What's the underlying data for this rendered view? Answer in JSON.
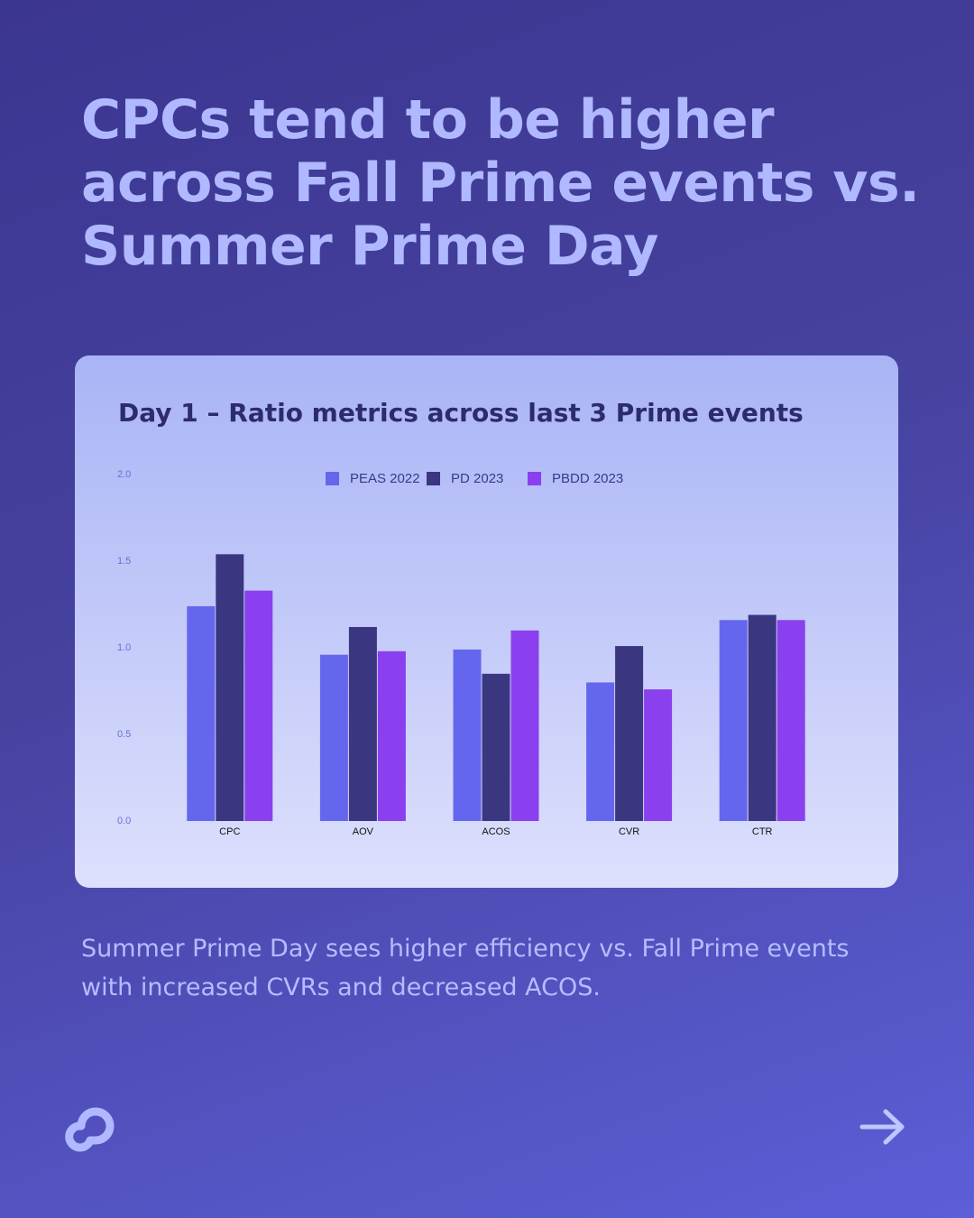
{
  "heading": "CPCs tend to be higher across Fall Prime events vs. Summer Prime Day",
  "caption": "Summer Prime Day sees higher efficiency vs. Fall Prime events with increased CVRs and decreased ACOS.",
  "chart_data": {
    "type": "bar",
    "title": "Day 1 – Ratio metrics across last 3 Prime events",
    "categories": [
      "CPC",
      "AOV",
      "ACOS",
      "CVR",
      "CTR"
    ],
    "series": [
      {
        "name": "PEAS 2022",
        "color": "#6566ee",
        "values": [
          1.24,
          0.96,
          0.99,
          0.8,
          1.16
        ]
      },
      {
        "name": "PD 2023",
        "color": "#3a3680",
        "values": [
          1.54,
          1.12,
          0.85,
          1.01,
          1.19
        ]
      },
      {
        "name": "PBDD 2023",
        "color": "#8a40ee",
        "values": [
          1.33,
          0.98,
          1.1,
          0.76,
          1.16
        ]
      }
    ],
    "ylim": [
      0,
      2
    ],
    "yticks": [
      {
        "value": 0,
        "label": "0.0"
      },
      0.5,
      {
        "value": 1,
        "label": "1.0"
      },
      1.5,
      {
        "value": 2,
        "label": "2.0"
      }
    ],
    "grid": false,
    "legend": "top"
  }
}
